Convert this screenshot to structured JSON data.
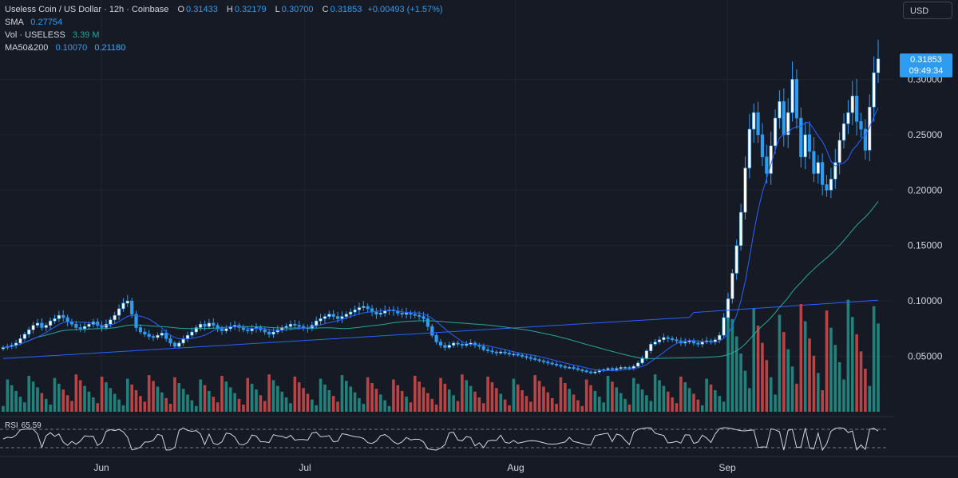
{
  "header": {
    "symbol": "Useless Coin / US Dollar · 12h · Coinbase",
    "o_label": "O",
    "o_value": "0.31433",
    "h_label": "H",
    "h_value": "0.32179",
    "l_label": "L",
    "l_value": "0.30700",
    "c_label": "C",
    "c_value": "0.31853",
    "change": "+0.00493 (+1.57%)",
    "sma_label": "SMA",
    "sma_value": "0.27754",
    "vol_label": "Vol · USELESS",
    "vol_value": "3.39 M",
    "ma_label": "MA50&200",
    "ma50_value": "0.10070",
    "ma200_value": "0.21180"
  },
  "currency_button": "USD",
  "last_price": {
    "value": "0.31853",
    "countdown": "09:49:34"
  },
  "rsi": {
    "label": "RSI",
    "value": "65.59"
  },
  "colors": {
    "background": "#161a25",
    "candle": "#2e9cf0",
    "vol_up": "#26a69a",
    "vol_down": "#ef5350",
    "sma": "#2962ff",
    "ma50": "#26a69a",
    "ma200": "#2962ff",
    "rsi_line": "#d1d4dc"
  },
  "chart_data": {
    "type": "candlestick",
    "interval": "12h",
    "x_ticks": [
      "Jun",
      "Jul",
      "Aug",
      "Sep"
    ],
    "y_ticks": [
      "0.30000",
      "0.25000",
      "0.20000",
      "0.15000",
      "0.10000",
      "0.05000"
    ],
    "ylim": [
      0.0,
      0.35
    ],
    "close": [
      0.058,
      0.059,
      0.06,
      0.062,
      0.066,
      0.07,
      0.074,
      0.078,
      0.08,
      0.076,
      0.078,
      0.082,
      0.084,
      0.087,
      0.085,
      0.081,
      0.079,
      0.076,
      0.075,
      0.077,
      0.079,
      0.081,
      0.078,
      0.076,
      0.079,
      0.083,
      0.087,
      0.093,
      0.098,
      0.1,
      0.088,
      0.076,
      0.072,
      0.07,
      0.068,
      0.067,
      0.069,
      0.071,
      0.066,
      0.062,
      0.059,
      0.062,
      0.066,
      0.069,
      0.072,
      0.076,
      0.079,
      0.077,
      0.08,
      0.078,
      0.075,
      0.073,
      0.075,
      0.077,
      0.078,
      0.076,
      0.074,
      0.073,
      0.075,
      0.076,
      0.074,
      0.072,
      0.07,
      0.072,
      0.074,
      0.076,
      0.077,
      0.079,
      0.078,
      0.077,
      0.076,
      0.075,
      0.078,
      0.082,
      0.084,
      0.086,
      0.088,
      0.086,
      0.084,
      0.086,
      0.088,
      0.09,
      0.092,
      0.094,
      0.095,
      0.093,
      0.09,
      0.088,
      0.089,
      0.091,
      0.092,
      0.091,
      0.089,
      0.088,
      0.089,
      0.088,
      0.087,
      0.086,
      0.084,
      0.077,
      0.069,
      0.063,
      0.06,
      0.058,
      0.06,
      0.062,
      0.061,
      0.06,
      0.061,
      0.062,
      0.06,
      0.059,
      0.056,
      0.055,
      0.054,
      0.053,
      0.054,
      0.053,
      0.052,
      0.052,
      0.051,
      0.05,
      0.049,
      0.048,
      0.047,
      0.046,
      0.045,
      0.044,
      0.043,
      0.042,
      0.041,
      0.04,
      0.04,
      0.039,
      0.038,
      0.037,
      0.036,
      0.035,
      0.036,
      0.037,
      0.038,
      0.039,
      0.038,
      0.039,
      0.04,
      0.04,
      0.039,
      0.041,
      0.044,
      0.048,
      0.055,
      0.061,
      0.063,
      0.065,
      0.067,
      0.066,
      0.065,
      0.064,
      0.062,
      0.063,
      0.064,
      0.062,
      0.061,
      0.063,
      0.064,
      0.063,
      0.065,
      0.069,
      0.085,
      0.102,
      0.125,
      0.15,
      0.18,
      0.22,
      0.255,
      0.27,
      0.25,
      0.23,
      0.215,
      0.24,
      0.265,
      0.28,
      0.25,
      0.27,
      0.3,
      0.265,
      0.23,
      0.25,
      0.235,
      0.215,
      0.225,
      0.205,
      0.2,
      0.21,
      0.225,
      0.245,
      0.26,
      0.27,
      0.285,
      0.262,
      0.255,
      0.236,
      0.275,
      0.306,
      0.3185
    ],
    "ma50_last": 0.1007,
    "ma200_last": 0.2118,
    "sma_last": 0.27754,
    "rsi_last": 65.59
  }
}
